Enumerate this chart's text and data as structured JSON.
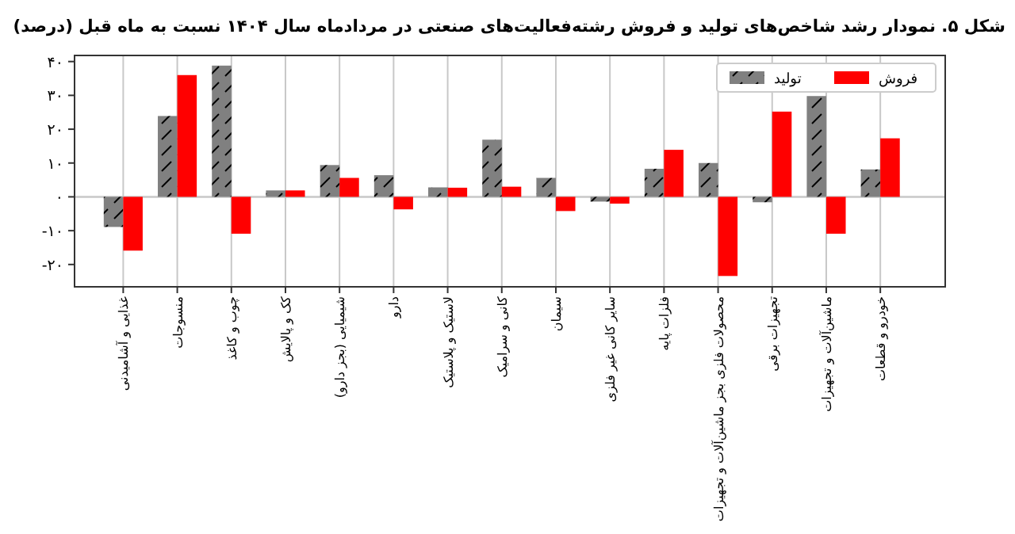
{
  "chart_data": {
    "type": "bar",
    "title": "شکل ۵. نمودار رشد شاخص‌های تولید و فروش رشته‌فعالیت‌های صنعتی در مردادماه سال ۱۴۰۴ نسبت به ماه قبل (درصد)",
    "categories": [
      "غذایی و آشامیدنی",
      "منسوجات",
      "چوب و کاغذ",
      "کک و پالایش",
      "شیمیایی (بجز دارو)",
      "دارو",
      "لاستیک و پلاستیک",
      "کانی و سرامیک",
      "سیمان",
      "سایر کانی غیر فلزی",
      "فلزات پایه",
      "محصولات فلزی بجز ماشین‌آلات و تجهیزات",
      "تجهیزات برقی",
      "ماشین‌آلات و تجهیزات",
      "خودرو و قطعات"
    ],
    "series": [
      {
        "name": "تولید",
        "color": "#808080",
        "values": [
          -8.9,
          23.9,
          38.8,
          1.9,
          9.4,
          6.4,
          2.8,
          16.9,
          5.6,
          -1.4,
          8.3,
          10.0,
          -1.6,
          29.8,
          8.1
        ]
      },
      {
        "name": "فروش",
        "color": "#ff0000",
        "values": [
          -15.9,
          36.0,
          -10.9,
          1.9,
          5.6,
          -3.7,
          2.7,
          3.0,
          -4.2,
          -2.0,
          13.9,
          -23.4,
          25.2,
          -10.9,
          17.3
        ]
      }
    ],
    "ylim": [
      -26.6,
      41.8
    ],
    "yticks": [
      {
        "value": -20,
        "label": "-۲۰"
      },
      {
        "value": -10,
        "label": "-۱۰"
      },
      {
        "value": 0,
        "label": "۰"
      },
      {
        "value": 10,
        "label": "۱۰"
      },
      {
        "value": 20,
        "label": "۲۰"
      },
      {
        "value": 30,
        "label": "۳۰"
      },
      {
        "value": 40,
        "label": "۴۰"
      }
    ],
    "grid": "x",
    "ref_lines": [
      {
        "axis": "y",
        "value": 0,
        "color": "#c8c8c8"
      }
    ],
    "legend": "top right"
  }
}
